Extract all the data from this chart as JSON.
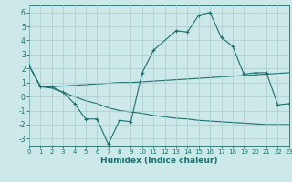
{
  "xlabel": "Humidex (Indice chaleur)",
  "background_color": "#cde8e8",
  "grid_color": "#aacccc",
  "line_color": "#1a7070",
  "xlim": [
    0,
    23
  ],
  "ylim": [
    -3.5,
    6.5
  ],
  "yticks": [
    -3,
    -2,
    -1,
    0,
    1,
    2,
    3,
    4,
    5,
    6
  ],
  "xticks": [
    0,
    1,
    2,
    3,
    4,
    5,
    6,
    7,
    8,
    9,
    10,
    11,
    12,
    13,
    14,
    15,
    16,
    17,
    18,
    19,
    20,
    21,
    22,
    23
  ],
  "s1_x": [
    0,
    1,
    2,
    3,
    4,
    5,
    6,
    7,
    8,
    9,
    10,
    11,
    13,
    14,
    15,
    16,
    17,
    18,
    19,
    20,
    21,
    22,
    23
  ],
  "s1_y": [
    2.2,
    0.7,
    0.7,
    0.3,
    -0.5,
    -1.6,
    -1.6,
    -3.4,
    -1.7,
    -1.8,
    1.7,
    3.3,
    4.7,
    4.6,
    5.8,
    6.0,
    4.2,
    3.6,
    1.6,
    1.7,
    1.7,
    -0.6,
    -0.5
  ],
  "s2_x": [
    0,
    1,
    2,
    3,
    4,
    5,
    6,
    7,
    8,
    9,
    10,
    11,
    12,
    13,
    14,
    15,
    16,
    17,
    18,
    19,
    20,
    21,
    22,
    23
  ],
  "s2_y": [
    2.2,
    0.7,
    0.7,
    0.75,
    0.8,
    0.85,
    0.9,
    0.95,
    1.0,
    1.0,
    1.05,
    1.1,
    1.15,
    1.2,
    1.25,
    1.3,
    1.35,
    1.4,
    1.45,
    1.5,
    1.55,
    1.6,
    1.65,
    1.7
  ],
  "s3_x": [
    0,
    1,
    2,
    3,
    4,
    5,
    6,
    7,
    8,
    9,
    10,
    11,
    12,
    13,
    14,
    15,
    16,
    17,
    18,
    19,
    20,
    21,
    22,
    23
  ],
  "s3_y": [
    2.2,
    0.7,
    0.6,
    0.3,
    0.0,
    -0.3,
    -0.5,
    -0.8,
    -1.0,
    -1.1,
    -1.2,
    -1.35,
    -1.45,
    -1.55,
    -1.6,
    -1.7,
    -1.75,
    -1.8,
    -1.85,
    -1.9,
    -1.95,
    -2.0,
    -2.0,
    -2.0
  ]
}
